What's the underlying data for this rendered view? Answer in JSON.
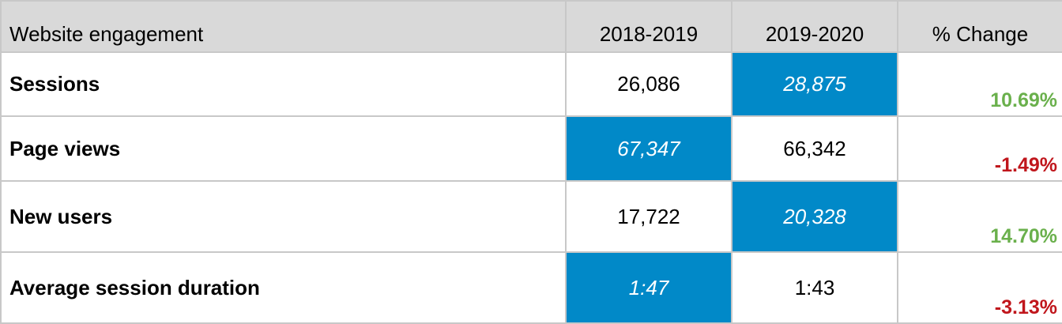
{
  "table": {
    "headers": [
      "Website engagement",
      "2018-2019",
      "2019-2020",
      "% Change"
    ],
    "rows": [
      {
        "metric": "Sessions",
        "y2018_2019": "26,086",
        "y2019_2020": "28,875",
        "change": "10.69%"
      },
      {
        "metric": "Page views",
        "y2018_2019": "67,347",
        "y2019_2020": "66,342",
        "change": "-1.49%"
      },
      {
        "metric": "New users",
        "y2018_2019": "17,722",
        "y2019_2020": "20,328",
        "change": "14.70%"
      },
      {
        "metric": "Average session duration",
        "y2018_2019": "1:47",
        "y2019_2020": "1:43",
        "change": "-3.13%"
      }
    ]
  },
  "colors": {
    "header_bg": "#d9d9d9",
    "highlight_bg": "#0189c8",
    "positive": "#6ab04c",
    "negative": "#c0161c",
    "border": "#c8c8c8"
  }
}
